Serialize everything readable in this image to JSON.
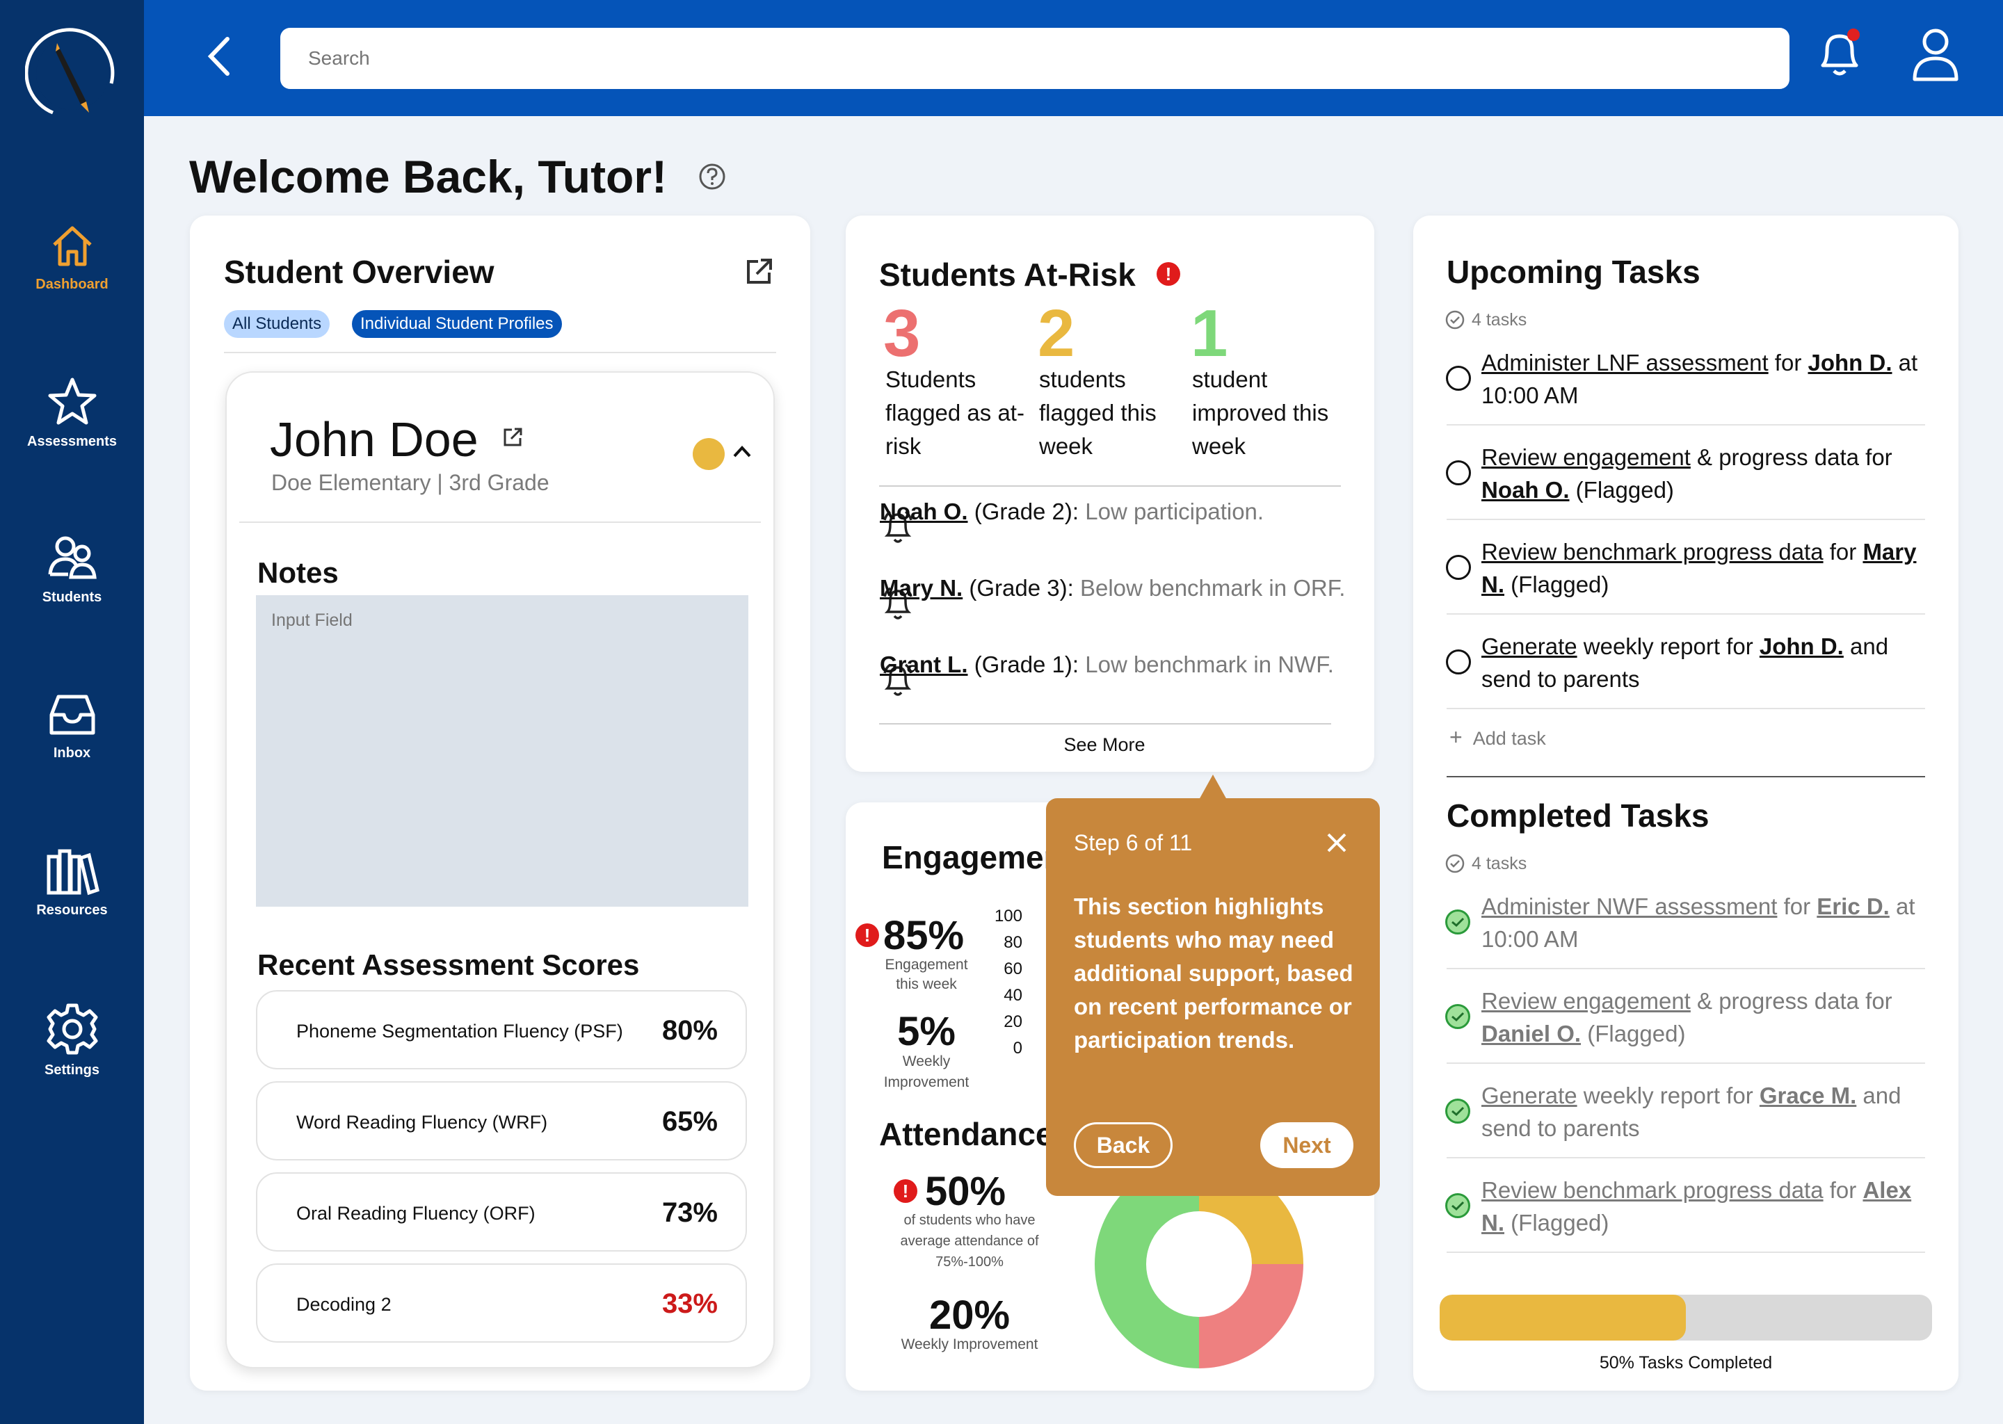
{
  "nav": {
    "items": [
      {
        "label": "Dashboard"
      },
      {
        "label": "Assessments"
      },
      {
        "label": "Students"
      },
      {
        "label": "Inbox"
      },
      {
        "label": "Resources"
      },
      {
        "label": "Settings"
      }
    ]
  },
  "search": {
    "placeholder": "Search"
  },
  "page": {
    "title": "Welcome Back, Tutor!"
  },
  "overview": {
    "title": "Student Overview",
    "tab_all": "All Students",
    "tab_profiles": "Individual Student Profiles",
    "student": {
      "name": "John Doe",
      "school": "Doe Elementary | 3rd Grade"
    },
    "notes": {
      "title": "Notes",
      "placeholder": "Input Field"
    },
    "scores_title": "Recent Assessment Scores",
    "scores": [
      {
        "name": "Phoneme Segmentation Fluency (PSF)",
        "value": "80%"
      },
      {
        "name": "Word Reading Fluency (WRF)",
        "value": "65%"
      },
      {
        "name": "Oral Reading Fluency (ORF)",
        "value": "73%"
      },
      {
        "name": "Decoding 2",
        "value": "33%"
      }
    ]
  },
  "atrisk": {
    "title": "Students At-Risk",
    "stats": [
      {
        "num": "3",
        "label": "Students flagged as at-risk",
        "color": "#ec7070"
      },
      {
        "num": "2",
        "label": "students flagged this week",
        "color": "#e9b840"
      },
      {
        "num": "1",
        "label": "student improved this week",
        "color": "#7ed87a"
      }
    ],
    "alerts": [
      {
        "name": "Noah O.",
        "grade": "(Grade 2):",
        "issue": "Low participation."
      },
      {
        "name": "Mary N.",
        "grade": "(Grade 3):",
        "issue": "Below benchmark in ORF."
      },
      {
        "name": "Grant L.",
        "grade": "(Grade 1):",
        "issue": "Low benchmark in NWF."
      }
    ],
    "see_more": "See More"
  },
  "engagement": {
    "title": "Engagement",
    "pct": "85%",
    "pct_label": "Engagement this week",
    "imp": "5%",
    "imp_label": "Weekly Improvement",
    "ticks": [
      "100",
      "80",
      "60",
      "40",
      "20",
      "0"
    ]
  },
  "attendance": {
    "title": "Attendance",
    "pct": "50%",
    "pct_label": "of students who have average attendance of 75%-100%",
    "imp": "20%",
    "imp_label": "Weekly Improvement"
  },
  "chart_data": {
    "type": "pie",
    "donut": true,
    "slices": [
      {
        "value": 25,
        "color": "#e9b840"
      },
      {
        "value": 25,
        "color": "#ee8080"
      },
      {
        "value": 50,
        "color": "#7ed87a"
      }
    ]
  },
  "tooltip": {
    "step": "Step 6 of 11",
    "body": "This section highlights students who may need additional support, based on recent performance or participation trends.",
    "back": "Back",
    "next": "Next"
  },
  "upcoming": {
    "title": "Upcoming Tasks",
    "count": "4 tasks",
    "tasks": [
      {
        "a": "Administer LNF assessment",
        "b": " for ",
        "c": "John D.",
        "d": " at 10:00 AM"
      },
      {
        "a": "Review engagement",
        "b": " & progress data for ",
        "c": "Noah O.",
        "d": " (Flagged)"
      },
      {
        "a": "Review benchmark progress data",
        "b": " for ",
        "c": "Mary N.",
        "d": " (Flagged)"
      },
      {
        "a": "Generate",
        "b": " weekly report for ",
        "c": "John D.",
        "d": " and send to parents"
      }
    ],
    "add": "Add task"
  },
  "completed": {
    "title": "Completed Tasks",
    "count": "4 tasks",
    "tasks": [
      {
        "a": "Administer NWF assessment",
        "b": " for ",
        "c": "Eric D.",
        "d": " at 10:00 AM"
      },
      {
        "a": "Review engagement",
        "b": " & progress data for ",
        "c": "Daniel O.",
        "d": " (Flagged)"
      },
      {
        "a": "Generate",
        "b": " weekly report for ",
        "c": "Grace M.",
        "d": " and send to parents"
      },
      {
        "a": "Review benchmark progress data",
        "b": " for ",
        "c": "Alex N.",
        "d": " (Flagged)"
      }
    ]
  },
  "progress": {
    "value": 0.5,
    "label": "50% Tasks Completed"
  }
}
